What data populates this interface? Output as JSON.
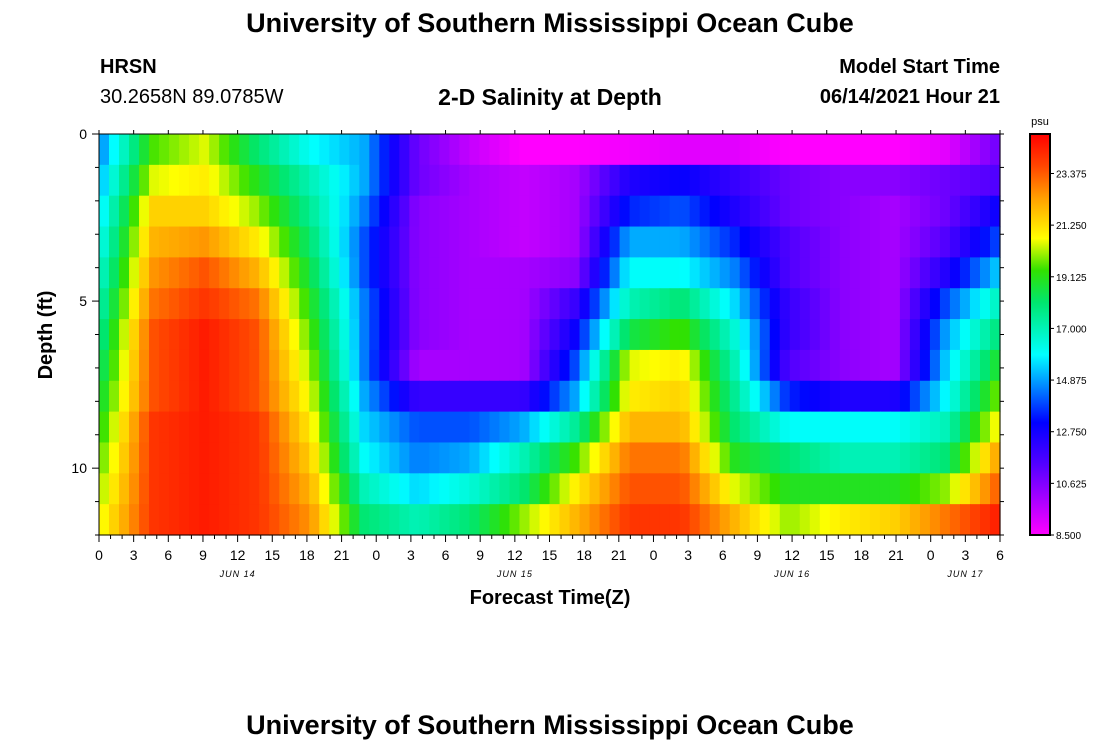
{
  "header": {
    "title": "University of Southern Mississippi Ocean Cube",
    "station": "HRSN",
    "coords": "30.2658N  89.0785W",
    "product": "2-D Salinity at Depth",
    "start_label": "Model Start Time",
    "start_value": "06/14/2021 Hour 21"
  },
  "footer": {
    "title": "University of Southern Mississippi Ocean Cube"
  },
  "chart_data": {
    "type": "heatmap",
    "title": "2-D Salinity at Depth",
    "xlabel": "Forecast Time(Z)",
    "ylabel": "Depth (ft)",
    "x_tick_labels": [
      "0",
      "3",
      "6",
      "9",
      "12",
      "15",
      "18",
      "21",
      "0",
      "3",
      "6",
      "9",
      "12",
      "15",
      "18",
      "21",
      "0",
      "3",
      "6",
      "9",
      "12",
      "15",
      "18",
      "21",
      "0",
      "3",
      "6"
    ],
    "date_labels": [
      {
        "label": "JUN 14",
        "tick_index": 4
      },
      {
        "label": "JUN 15",
        "tick_index": 12
      },
      {
        "label": "JUN 16",
        "tick_index": 20
      },
      {
        "label": "JUN 17",
        "tick_index": 25
      }
    ],
    "y_tick_labels": [
      "0",
      "5",
      "10"
    ],
    "y_range": [
      0,
      12
    ],
    "x_range_hours": [
      0,
      78
    ],
    "colorbar": {
      "unit": "psu",
      "labels": [
        "23.375",
        "21.250",
        "19.125",
        "17.000",
        "14.875",
        "12.750",
        "10.625",
        "8.500"
      ],
      "range": [
        8.5,
        25.0
      ]
    },
    "depth_levels_ft": [
      0,
      1,
      2,
      3,
      4,
      5,
      6,
      7,
      8,
      9,
      10,
      11,
      12
    ],
    "salinity_rows_psu": [
      [
        14.5,
        19.5,
        20.5,
        18.0,
        16.0,
        15.0,
        11.0,
        9.5,
        8.5,
        8.5,
        8.7,
        9.0,
        9.0,
        8.5,
        8.5,
        8.5,
        9.0,
        11.0
      ],
      [
        15.0,
        20.5,
        21.0,
        19.0,
        17.0,
        15.0,
        11.0,
        10.0,
        9.5,
        10.0,
        12.5,
        13.0,
        12.0,
        11.0,
        10.5,
        10.5,
        11.0,
        11.5
      ],
      [
        15.5,
        21.5,
        21.5,
        20.0,
        17.5,
        14.5,
        10.5,
        10.0,
        9.5,
        10.0,
        13.5,
        14.0,
        12.5,
        11.0,
        10.5,
        10.0,
        11.0,
        13.0
      ],
      [
        16.0,
        22.0,
        22.5,
        21.0,
        18.0,
        14.0,
        10.5,
        10.0,
        9.5,
        10.0,
        15.0,
        15.0,
        13.5,
        11.5,
        10.5,
        10.0,
        11.5,
        14.0
      ],
      [
        16.5,
        22.5,
        23.5,
        22.0,
        18.5,
        14.0,
        10.5,
        10.0,
        10.0,
        10.5,
        16.0,
        16.0,
        14.5,
        11.5,
        10.5,
        10.0,
        12.5,
        15.5
      ],
      [
        17.0,
        23.0,
        24.0,
        23.0,
        19.0,
        14.5,
        10.5,
        10.0,
        10.0,
        12.0,
        17.0,
        18.0,
        15.5,
        12.0,
        10.5,
        10.0,
        14.0,
        17.0
      ],
      [
        17.5,
        23.5,
        24.5,
        23.5,
        19.5,
        14.5,
        10.5,
        10.0,
        10.0,
        13.0,
        18.5,
        19.5,
        16.5,
        12.0,
        10.5,
        10.0,
        15.0,
        18.0
      ],
      [
        18.0,
        23.5,
        24.5,
        23.5,
        20.0,
        14.5,
        10.0,
        10.0,
        10.0,
        14.0,
        20.5,
        21.0,
        17.0,
        11.5,
        10.5,
        10.0,
        15.5,
        19.0
      ],
      [
        18.5,
        23.5,
        24.5,
        23.5,
        20.5,
        15.0,
        12.0,
        12.0,
        12.0,
        15.0,
        21.0,
        21.5,
        17.5,
        13.5,
        12.5,
        12.5,
        16.0,
        20.0
      ],
      [
        19.0,
        24.0,
        24.5,
        24.0,
        21.0,
        15.5,
        14.0,
        14.0,
        15.0,
        17.5,
        22.0,
        22.0,
        18.0,
        16.0,
        16.0,
        16.0,
        17.0,
        21.0
      ],
      [
        19.5,
        24.0,
        24.5,
        24.0,
        21.5,
        16.0,
        14.5,
        15.0,
        17.0,
        19.5,
        23.0,
        23.0,
        19.0,
        18.0,
        17.0,
        17.0,
        18.0,
        22.5
      ],
      [
        20.0,
        24.0,
        24.5,
        24.0,
        22.0,
        17.0,
        15.5,
        16.5,
        18.0,
        21.0,
        23.5,
        23.5,
        20.5,
        19.0,
        19.0,
        19.0,
        20.0,
        23.5
      ],
      [
        20.5,
        24.0,
        24.5,
        24.0,
        22.5,
        18.0,
        17.0,
        18.0,
        20.0,
        22.0,
        24.0,
        24.0,
        22.0,
        20.0,
        21.0,
        21.5,
        23.0,
        24.5
      ]
    ]
  }
}
